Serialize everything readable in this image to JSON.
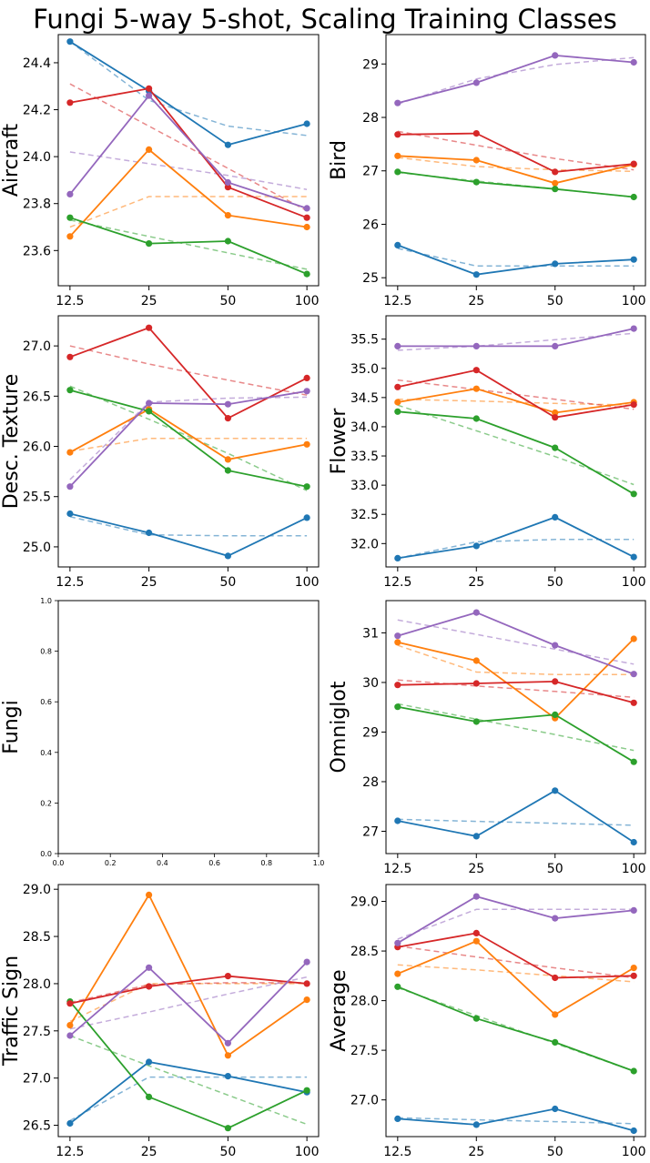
{
  "title": "Fungi 5-way 5-shot, Scaling Training Classes",
  "colors": {
    "blue": "#1f77b4",
    "orange": "#ff7f0e",
    "green": "#2ca02c",
    "red": "#d62728",
    "purple": "#9467bd"
  },
  "chart_data": [
    {
      "type": "line",
      "ylabel": "Aircraft",
      "categories": [
        "12.5",
        "25",
        "50",
        "100"
      ],
      "ylim": [
        23.45,
        24.52
      ],
      "yticks": [
        "23.6",
        "23.8",
        "24.0",
        "24.2",
        "24.4"
      ],
      "series": [
        {
          "name": "blue",
          "color": "#1f77b4",
          "values": [
            24.49,
            24.28,
            24.05,
            24.14
          ],
          "fit": [
            24.49,
            24.24,
            24.13,
            24.09
          ]
        },
        {
          "name": "orange",
          "color": "#ff7f0e",
          "values": [
            23.66,
            24.03,
            23.75,
            23.7
          ],
          "fit": [
            23.7,
            23.83,
            23.83,
            23.83
          ]
        },
        {
          "name": "green",
          "color": "#2ca02c",
          "values": [
            23.74,
            23.63,
            23.64,
            23.5
          ],
          "fit": [
            23.73,
            23.66,
            23.59,
            23.52
          ]
        },
        {
          "name": "red",
          "color": "#d62728",
          "values": [
            24.23,
            24.29,
            23.87,
            23.74
          ],
          "fit": [
            24.31,
            24.13,
            23.95,
            23.77
          ]
        },
        {
          "name": "purple",
          "color": "#9467bd",
          "values": [
            23.84,
            24.26,
            23.89,
            23.78
          ],
          "fit": [
            24.02,
            23.97,
            23.92,
            23.86
          ]
        }
      ]
    },
    {
      "type": "line",
      "ylabel": "Bird",
      "categories": [
        "12.5",
        "25",
        "50",
        "100"
      ],
      "ylim": [
        24.85,
        29.55
      ],
      "yticks": [
        "25",
        "26",
        "27",
        "28",
        "29"
      ],
      "series": [
        {
          "name": "blue",
          "color": "#1f77b4",
          "values": [
            25.61,
            25.06,
            25.26,
            25.34
          ],
          "fit": [
            25.55,
            25.22,
            25.22,
            25.22
          ]
        },
        {
          "name": "orange",
          "color": "#ff7f0e",
          "values": [
            27.28,
            27.2,
            26.77,
            27.12
          ],
          "fit": [
            27.25,
            27.08,
            27.02,
            26.99
          ]
        },
        {
          "name": "green",
          "color": "#2ca02c",
          "values": [
            26.98,
            26.79,
            26.66,
            26.51
          ],
          "fit": [
            26.97,
            26.81,
            26.66,
            26.51
          ]
        },
        {
          "name": "red",
          "color": "#d62728",
          "values": [
            27.68,
            27.7,
            26.98,
            27.13
          ],
          "fit": [
            27.74,
            27.48,
            27.23,
            27.02
          ]
        },
        {
          "name": "purple",
          "color": "#9467bd",
          "values": [
            28.27,
            28.65,
            29.16,
            29.03
          ],
          "fit": [
            28.25,
            28.72,
            28.99,
            29.12
          ]
        }
      ]
    },
    {
      "type": "line",
      "ylabel": "Desc. Texture",
      "categories": [
        "12.5",
        "25",
        "50",
        "100"
      ],
      "ylim": [
        24.8,
        27.3
      ],
      "yticks": [
        "25.0",
        "25.5",
        "26.0",
        "26.5",
        "27.0"
      ],
      "series": [
        {
          "name": "blue",
          "color": "#1f77b4",
          "values": [
            25.33,
            25.14,
            24.91,
            25.29
          ],
          "fit": [
            25.3,
            25.12,
            25.11,
            25.11
          ]
        },
        {
          "name": "orange",
          "color": "#ff7f0e",
          "values": [
            25.94,
            26.37,
            25.87,
            26.02
          ],
          "fit": [
            25.95,
            26.08,
            26.08,
            26.08
          ]
        },
        {
          "name": "green",
          "color": "#2ca02c",
          "values": [
            26.56,
            26.35,
            25.76,
            25.6
          ],
          "fit": [
            26.6,
            26.27,
            25.93,
            25.56
          ]
        },
        {
          "name": "red",
          "color": "#d62728",
          "values": [
            26.89,
            27.18,
            26.28,
            26.68
          ],
          "fit": [
            27.0,
            26.82,
            26.66,
            26.51
          ]
        },
        {
          "name": "purple",
          "color": "#9467bd",
          "values": [
            25.6,
            26.43,
            26.42,
            26.55
          ],
          "fit": [
            25.67,
            26.44,
            26.48,
            26.49
          ]
        }
      ]
    },
    {
      "type": "line",
      "ylabel": "Flower",
      "categories": [
        "12.5",
        "25",
        "50",
        "100"
      ],
      "ylim": [
        31.6,
        35.9
      ],
      "yticks": [
        "32.0",
        "32.5",
        "33.0",
        "33.5",
        "34.0",
        "34.5",
        "35.0",
        "35.5"
      ],
      "series": [
        {
          "name": "blue",
          "color": "#1f77b4",
          "values": [
            31.75,
            31.96,
            32.45,
            31.77
          ],
          "fit": [
            31.75,
            32.03,
            32.07,
            32.07
          ]
        },
        {
          "name": "orange",
          "color": "#ff7f0e",
          "values": [
            34.42,
            34.65,
            34.24,
            34.42
          ],
          "fit": [
            34.47,
            34.44,
            34.4,
            34.37
          ]
        },
        {
          "name": "green",
          "color": "#2ca02c",
          "values": [
            34.26,
            34.14,
            33.64,
            32.85
          ],
          "fit": [
            34.37,
            33.93,
            33.49,
            33.01
          ]
        },
        {
          "name": "red",
          "color": "#d62728",
          "values": [
            34.68,
            34.97,
            34.16,
            34.38
          ],
          "fit": [
            34.8,
            34.64,
            34.47,
            34.3
          ]
        },
        {
          "name": "purple",
          "color": "#9467bd",
          "values": [
            35.38,
            35.38,
            35.38,
            35.68
          ],
          "fit": [
            35.31,
            35.38,
            35.49,
            35.6
          ]
        }
      ]
    },
    {
      "type": "line",
      "ylabel": "Fungi",
      "empty": true,
      "xlim": [
        0.0,
        1.0
      ],
      "ylim": [
        0.0,
        1.0
      ],
      "xticks": [
        "0.0",
        "0.2",
        "0.4",
        "0.6",
        "0.8",
        "1.0"
      ],
      "yticks": [
        "0.0",
        "0.2",
        "0.4",
        "0.6",
        "0.8",
        "1.0"
      ],
      "series": []
    },
    {
      "type": "line",
      "ylabel": "Omniglot",
      "categories": [
        "12.5",
        "25",
        "50",
        "100"
      ],
      "ylim": [
        26.55,
        31.65
      ],
      "yticks": [
        "27",
        "28",
        "29",
        "30",
        "31"
      ],
      "series": [
        {
          "name": "blue",
          "color": "#1f77b4",
          "values": [
            27.21,
            26.9,
            27.82,
            26.78
          ],
          "fit": [
            27.24,
            27.2,
            27.16,
            27.12
          ]
        },
        {
          "name": "orange",
          "color": "#ff7f0e",
          "values": [
            30.81,
            30.44,
            29.28,
            30.88
          ],
          "fit": [
            30.75,
            30.21,
            30.16,
            30.16
          ]
        },
        {
          "name": "green",
          "color": "#2ca02c",
          "values": [
            29.51,
            29.21,
            29.35,
            28.4
          ],
          "fit": [
            29.57,
            29.26,
            28.95,
            28.63
          ]
        },
        {
          "name": "red",
          "color": "#d62728",
          "values": [
            29.95,
            29.98,
            30.02,
            29.59
          ],
          "fit": [
            30.05,
            29.93,
            29.82,
            29.7
          ]
        },
        {
          "name": "purple",
          "color": "#9467bd",
          "values": [
            30.94,
            31.41,
            30.75,
            30.17
          ],
          "fit": [
            31.26,
            30.97,
            30.67,
            30.37
          ]
        }
      ]
    },
    {
      "type": "line",
      "ylabel": "Traffic Sign",
      "categories": [
        "12.5",
        "25",
        "50",
        "100"
      ],
      "ylim": [
        26.38,
        29.05
      ],
      "yticks": [
        "26.5",
        "27.0",
        "27.5",
        "28.0",
        "28.5",
        "29.0"
      ],
      "series": [
        {
          "name": "blue",
          "color": "#1f77b4",
          "values": [
            26.52,
            27.17,
            27.02,
            26.85
          ],
          "fit": [
            26.55,
            27.01,
            27.01,
            27.01
          ]
        },
        {
          "name": "orange",
          "color": "#ff7f0e",
          "values": [
            27.56,
            28.94,
            27.24,
            27.83
          ],
          "fit": [
            27.6,
            28.0,
            28.0,
            28.0
          ]
        },
        {
          "name": "green",
          "color": "#2ca02c",
          "values": [
            27.81,
            26.8,
            26.47,
            26.87
          ],
          "fit": [
            27.45,
            27.13,
            26.82,
            26.51
          ]
        },
        {
          "name": "red",
          "color": "#d62728",
          "values": [
            27.79,
            27.97,
            28.08,
            28.0
          ],
          "fit": [
            27.8,
            27.99,
            28.01,
            28.01
          ]
        },
        {
          "name": "purple",
          "color": "#9467bd",
          "values": [
            27.45,
            28.17,
            27.37,
            28.23
          ],
          "fit": [
            27.52,
            27.7,
            27.89,
            28.07
          ]
        }
      ]
    },
    {
      "type": "line",
      "ylabel": "Average",
      "categories": [
        "12.5",
        "25",
        "50",
        "100"
      ],
      "ylim": [
        26.63,
        29.17
      ],
      "yticks": [
        "27.0",
        "27.5",
        "28.0",
        "28.5",
        "29.0"
      ],
      "series": [
        {
          "name": "blue",
          "color": "#1f77b4",
          "values": [
            26.81,
            26.75,
            26.91,
            26.69
          ],
          "fit": [
            26.82,
            26.8,
            26.78,
            26.76
          ]
        },
        {
          "name": "orange",
          "color": "#ff7f0e",
          "values": [
            28.27,
            28.6,
            27.86,
            28.33
          ],
          "fit": [
            28.36,
            28.31,
            28.25,
            28.19
          ]
        },
        {
          "name": "green",
          "color": "#2ca02c",
          "values": [
            28.14,
            27.82,
            27.58,
            27.29
          ],
          "fit": [
            28.13,
            27.85,
            27.57,
            27.29
          ]
        },
        {
          "name": "red",
          "color": "#d62728",
          "values": [
            28.54,
            28.68,
            28.23,
            28.25
          ],
          "fit": [
            28.55,
            28.44,
            28.33,
            28.23
          ]
        },
        {
          "name": "purple",
          "color": "#9467bd",
          "values": [
            28.58,
            29.05,
            28.83,
            28.91
          ],
          "fit": [
            28.62,
            28.92,
            28.92,
            28.92
          ]
        }
      ]
    }
  ]
}
